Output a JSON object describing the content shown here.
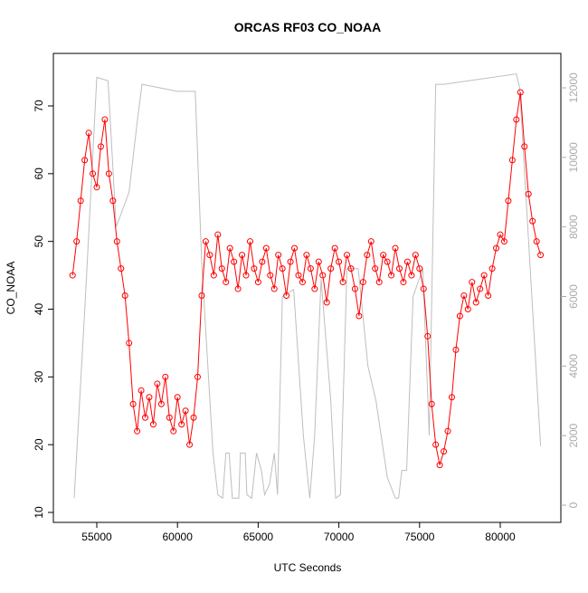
{
  "chart_data": {
    "type": "line",
    "title": "ORCAS RF03 CO_NOAA",
    "x_label": "UTC Seconds",
    "y_label": "CO_NOAA",
    "xlim": [
      52310,
      83756
    ],
    "ylim": [
      8.53,
      77.75
    ],
    "y2lim": [
      -495,
      12989
    ],
    "xticks": [
      55000,
      60000,
      65000,
      70000,
      75000,
      80000
    ],
    "yticks": [
      10,
      20,
      30,
      40,
      50,
      60,
      70
    ],
    "y2ticks": [
      0,
      2000,
      4000,
      6000,
      8000,
      10000,
      12000
    ],
    "grid": false,
    "series": [
      {
        "color": "#ff0000",
        "marker": "circle",
        "x": [
          53500,
          53750,
          54000,
          54250,
          54500,
          54750,
          55000,
          55250,
          55500,
          55750,
          56000,
          56250,
          56500,
          56750,
          57000,
          57250,
          57500,
          57750,
          58000,
          58250,
          58500,
          58750,
          59000,
          59250,
          59500,
          59750,
          60000,
          60250,
          60500,
          60750,
          61000,
          61250,
          61500,
          61750,
          62000,
          62250,
          62500,
          62750,
          63000,
          63250,
          63500,
          63750,
          64000,
          64250,
          64500,
          64750,
          65000,
          65250,
          65500,
          65750,
          66000,
          66250,
          66500,
          66750,
          67000,
          67250,
          67500,
          67750,
          68000,
          68250,
          68500,
          68750,
          69000,
          69250,
          69500,
          69750,
          70000,
          70250,
          70500,
          70750,
          71000,
          71250,
          71500,
          71750,
          72000,
          72250,
          72500,
          72750,
          73000,
          73250,
          73500,
          73750,
          74000,
          74250,
          74500,
          74750,
          75000,
          75250,
          75500,
          75750,
          76000,
          76250,
          76500,
          76750,
          77000,
          77250,
          77500,
          77750,
          78000,
          78250,
          78500,
          78750,
          79000,
          79250,
          79500,
          79750,
          80000,
          80250,
          80500,
          80750,
          81000,
          81250,
          81500,
          81750,
          82000,
          82250,
          82500
        ],
        "values": [
          45,
          50,
          56,
          62,
          66,
          60,
          58,
          64,
          68,
          60,
          56,
          50,
          46,
          42,
          35,
          26,
          22,
          28,
          24,
          27,
          23,
          29,
          26,
          30,
          24,
          22,
          27,
          23,
          25,
          20,
          24,
          30,
          42,
          50,
          48,
          45,
          51,
          46,
          44,
          49,
          47,
          43,
          48,
          45,
          50,
          46,
          44,
          47,
          49,
          45,
          43,
          48,
          46,
          42,
          47,
          49,
          45,
          44,
          48,
          46,
          43,
          47,
          45,
          41,
          46,
          49,
          47,
          44,
          48,
          46,
          43,
          39,
          44,
          48,
          50,
          46,
          44,
          48,
          47,
          45,
          49,
          46,
          44,
          47,
          45,
          48,
          46,
          43,
          36,
          26,
          20,
          17,
          19,
          22,
          27,
          34,
          39,
          42,
          40,
          44,
          41,
          43,
          45,
          42,
          46,
          49,
          51,
          50,
          56,
          62,
          68,
          72,
          64,
          57,
          53,
          50,
          48
        ]
      },
      {
        "color": "#bebebe",
        "axis": "y2",
        "x": [
          53600,
          54300,
          55000,
          55700,
          56200,
          57000,
          57500,
          57800,
          60000,
          61100,
          61500,
          62200,
          62500,
          62800,
          63000,
          63200,
          63400,
          63800,
          63900,
          64200,
          64300,
          64600,
          64900,
          65200,
          65400,
          65700,
          66000,
          66200,
          66500,
          67200,
          67800,
          68200,
          68500,
          68900,
          69500,
          69800,
          70100,
          70500,
          71200,
          71800,
          72300,
          73000,
          73500,
          73700,
          73900,
          74200,
          74600,
          75200,
          75600,
          76000,
          76500,
          81000,
          81200,
          82500
        ],
        "values": [
          200,
          6000,
          12300,
          12200,
          8000,
          9000,
          11000,
          12100,
          11900,
          11900,
          7000,
          1500,
          300,
          200,
          1500,
          1500,
          200,
          200,
          1500,
          1500,
          300,
          200,
          1500,
          1000,
          300,
          600,
          1500,
          300,
          6000,
          6200,
          2000,
          200,
          2000,
          6500,
          3000,
          200,
          300,
          6800,
          6800,
          4000,
          3000,
          800,
          200,
          200,
          1000,
          1000,
          6000,
          6800,
          2000,
          12100,
          12100,
          12400,
          12000,
          1700
        ]
      }
    ]
  }
}
